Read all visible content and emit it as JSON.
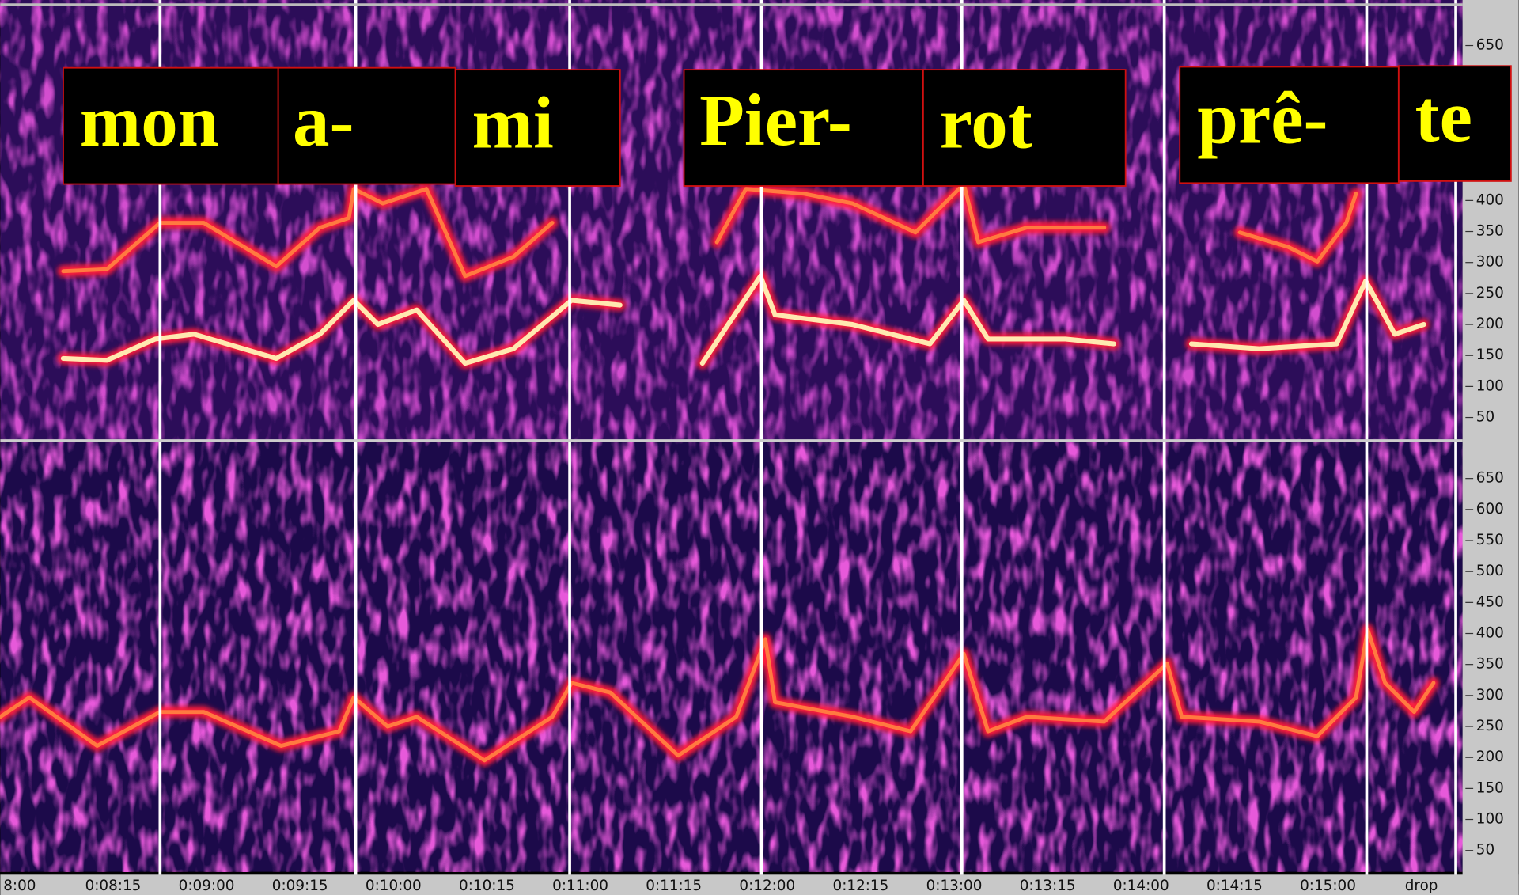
{
  "labels": [
    "mon",
    "a-",
    "mi",
    "Pier-",
    "rot",
    "prê-",
    "te"
  ],
  "top_axis": {
    "ticks": [
      650,
      400,
      350,
      300,
      250,
      200,
      150,
      100,
      50
    ]
  },
  "bottom_axis": {
    "ticks": [
      650,
      600,
      550,
      500,
      450,
      400,
      350,
      300,
      250,
      200,
      150,
      100,
      50
    ]
  },
  "time_axis": {
    "labels": [
      "8:00",
      "0:08:15",
      "0:09:00",
      "0:09:15",
      "0:10:00",
      "0:10:15",
      "0:11:00",
      "0:11:15",
      "0:12:00",
      "0:12:15",
      "0:13:00",
      "0:13:15",
      "0:14:00",
      "0:14:15",
      "0:15:00",
      "drop"
    ]
  }
}
